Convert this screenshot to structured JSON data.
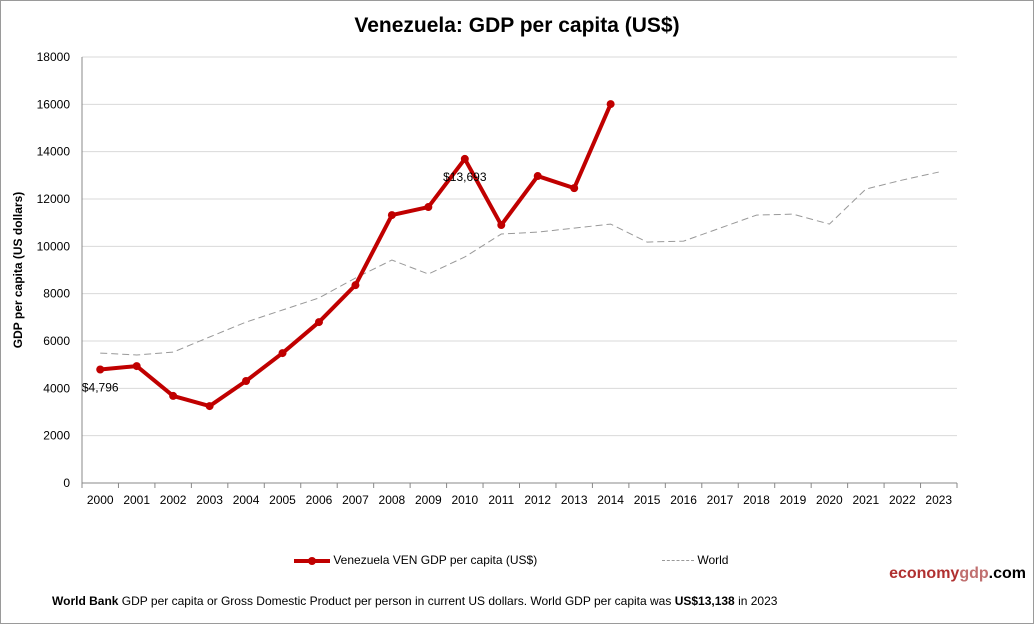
{
  "chart_data": {
    "type": "line",
    "title": "Venezuela: GDP per capita (US$)",
    "xlabel": "",
    "ylabel": "GDP per capita (US dollars)",
    "ylim": [
      0,
      18000
    ],
    "yticks": [
      0,
      2000,
      4000,
      6000,
      8000,
      10000,
      12000,
      14000,
      16000,
      18000
    ],
    "grid": true,
    "legend_placement": "bottom",
    "categories": [
      "2000",
      "2001",
      "2002",
      "2003",
      "2004",
      "2005",
      "2006",
      "2007",
      "2008",
      "2009",
      "2010",
      "2011",
      "2012",
      "2013",
      "2014",
      "2015",
      "2016",
      "2017",
      "2018",
      "2019",
      "2020",
      "2021",
      "2022",
      "2023"
    ],
    "series": [
      {
        "name": "Venezuela VEN GDP per capita (US$)",
        "color": "#c00000",
        "style": "solid-markers",
        "values": [
          4796,
          4940,
          3680,
          3250,
          4310,
          5490,
          6800,
          8360,
          11320,
          11660,
          13693,
          10900,
          12970,
          12460,
          16010,
          null,
          null,
          null,
          null,
          null,
          null,
          null,
          null,
          null
        ]
      },
      {
        "name": "World",
        "color": "#999999",
        "style": "dashed",
        "values": [
          5490,
          5410,
          5530,
          6170,
          6800,
          7310,
          7820,
          8660,
          9420,
          8830,
          9550,
          10520,
          10600,
          10770,
          10940,
          10180,
          10220,
          10770,
          11320,
          11360,
          10940,
          12420,
          12800,
          13138
        ]
      }
    ],
    "annotations": [
      {
        "category": "2000",
        "text": "$4,796"
      },
      {
        "category": "2010",
        "text": "$13,693"
      }
    ]
  },
  "brand": {
    "part1": "economy",
    "part2": "gdp",
    "part3": ".com"
  },
  "footer": {
    "bold1": "World Bank",
    "text1": " GDP per capita or Gross Domestic Product per person  in current US dollars.   World GDP per capita was ",
    "bold2": "US$13,138",
    "text2": "  in 2023"
  }
}
